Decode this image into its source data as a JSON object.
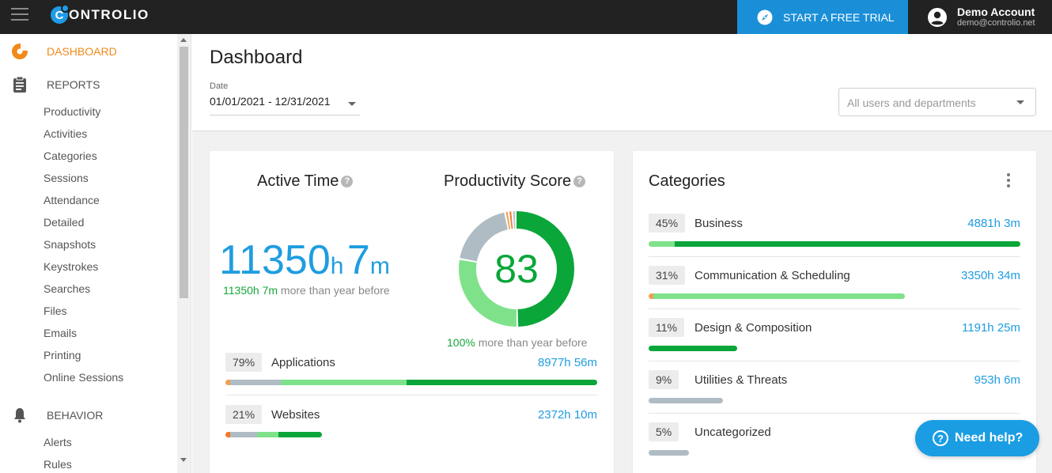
{
  "app": {
    "brand": "ONTROLIO",
    "brand_initial": "C"
  },
  "topbar": {
    "trial_label": "START A FREE TRIAL",
    "account_name": "Demo Account",
    "account_email": "demo@controlio.net"
  },
  "sidebar": {
    "dashboard": "DASHBOARD",
    "reports": "REPORTS",
    "report_items": [
      "Productivity",
      "Activities",
      "Categories",
      "Sessions",
      "Attendance",
      "Detailed",
      "Snapshots",
      "Keystrokes",
      "Searches",
      "Files",
      "Emails",
      "Printing",
      "Online Sessions"
    ],
    "behavior": "BEHAVIOR",
    "behavior_items": [
      "Alerts",
      "Rules"
    ]
  },
  "header": {
    "title": "Dashboard",
    "date_label": "Date",
    "date_value": "01/01/2021 - 12/31/2021",
    "users_placeholder": "All users and departments"
  },
  "active_time": {
    "title": "Active Time",
    "hours": "11350",
    "hours_unit": "h",
    "minutes": "7",
    "minutes_unit": "m",
    "delta_value": "11350h 7m",
    "delta_text": "more than year before"
  },
  "productivity": {
    "title": "Productivity Score",
    "score": "83",
    "delta_value": "100%",
    "delta_text": "more than year before",
    "segments": [
      {
        "value": 50,
        "color": "#0aa63a"
      },
      {
        "value": 28,
        "color": "#7fe28b"
      },
      {
        "value": 19,
        "color": "#b0bcc4"
      },
      {
        "value": 1,
        "color": "#f0a050"
      },
      {
        "value": 1,
        "color": "#f07a2a"
      },
      {
        "value": 1,
        "color": "#b9c3c9"
      }
    ]
  },
  "usage": [
    {
      "pct": "79%",
      "name": "Applications",
      "time": "8977h 56m"
    },
    {
      "pct": "21%",
      "name": "Websites",
      "time": "2372h 10m"
    }
  ],
  "categories": {
    "title": "Categories",
    "items": [
      {
        "pct": "45%",
        "name": "Business",
        "time": "4881h 3m"
      },
      {
        "pct": "31%",
        "name": "Communication & Scheduling",
        "time": "3350h 34m"
      },
      {
        "pct": "11%",
        "name": "Design & Composition",
        "time": "1191h 25m"
      },
      {
        "pct": "9%",
        "name": "Utilities & Threats",
        "time": "953h 6m"
      },
      {
        "pct": "5%",
        "name": "Uncategorized",
        "time": ""
      }
    ]
  },
  "help": {
    "label": "Need help?"
  },
  "colors": {
    "brand_blue": "#1f9de0",
    "productive": "#0aa63a",
    "light_productive": "#7fe28b",
    "neutral": "#b0bcc4",
    "distracting": "#f07a2a",
    "accent_orange": "#f08a1a"
  }
}
